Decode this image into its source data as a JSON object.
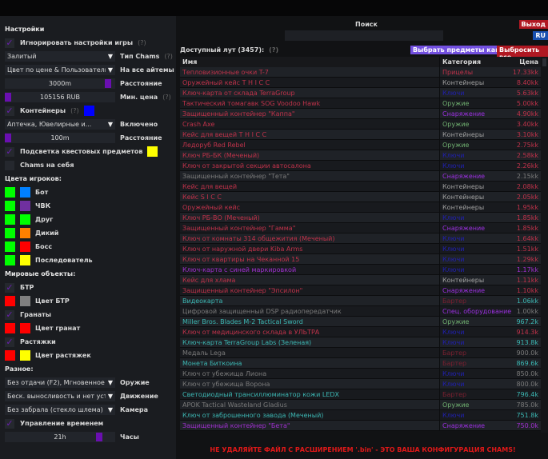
{
  "settings": {
    "title": "Настройки",
    "ignore_game": {
      "label": "Игнорировать настройки игры",
      "help": "(?)",
      "checked": true
    },
    "chams_type": {
      "value": "Залитый",
      "label": "Тип Chams",
      "help": "(?)"
    },
    "color_mode": {
      "value": "Цвет по цене & Пользователь",
      "label": "На все айтемы"
    },
    "distance": {
      "value": "3000m",
      "label": "Расстояние",
      "fraction": 0.96
    },
    "min_price": {
      "value": "105156 RUB",
      "label": "Мин. цена",
      "help": "(?)",
      "fraction": 0.0
    },
    "containers": {
      "label": "Контейнеры",
      "help": "(?)",
      "checked": true,
      "color": "#0000ff"
    },
    "container_types": {
      "value": "Аптечка, Ювелирные и...",
      "label": "Включено"
    },
    "container_distance": {
      "value": "100m",
      "label": "Расстояние",
      "fraction": 0.0
    },
    "quest_items": {
      "label": "Подсветка квестовых предметов",
      "checked": true,
      "color": "#ffff00"
    },
    "self_chams": {
      "label": "Chams на себя",
      "checked": false
    }
  },
  "players": {
    "title": "Цвета игроков:",
    "items": [
      {
        "label": "Бот",
        "c1": "#00ff00",
        "c2": "#0080ff"
      },
      {
        "label": "ЧВК",
        "c1": "#00ff00",
        "c2": "#7030a0"
      },
      {
        "label": "Друг",
        "c1": "#00ff00",
        "c2": "#00ff00"
      },
      {
        "label": "Дикий",
        "c1": "#00ff00",
        "c2": "#ff8000"
      },
      {
        "label": "Босс",
        "c1": "#00ff00",
        "c2": "#ff0000"
      },
      {
        "label": "Последователь",
        "c1": "#00ff00",
        "c2": "#ffff00"
      }
    ]
  },
  "world": {
    "title": "Мировые объекты:",
    "btr": {
      "label": "БТР",
      "checked": true,
      "color_label": "Цвет БТР",
      "c1": "#ff0000",
      "c2": "#808080"
    },
    "grenades": {
      "label": "Гранаты",
      "checked": true,
      "color_label": "Цвет гранат",
      "c1": "#ff0000",
      "c2": "#ff0000"
    },
    "tripwires": {
      "label": "Растяжки",
      "checked": true,
      "color_label": "Цвет растяжек",
      "c1": "#ff0000",
      "c2": "#ffff00"
    }
  },
  "misc": {
    "title": "Разное:",
    "weapon": {
      "value": "Без отдачи (F2), Мгновенное п",
      "label": "Оружие"
    },
    "movement": {
      "value": "Беск. выносливость и нет уста",
      "label": "Движение"
    },
    "camera": {
      "value": "Без забрала (стекло шлема)",
      "label": "Камера"
    },
    "time_control": {
      "label": "Управление временем",
      "checked": true
    },
    "hours": {
      "value": "21h",
      "label": "Часы",
      "fraction": 0.875
    }
  },
  "header": {
    "search_label": "Поиск",
    "search_value": "",
    "exit": "Выход",
    "lang": "RU"
  },
  "loot": {
    "title": "Доступный лут (3457):",
    "help": "(?)",
    "kappa_button": "Выбрать предметы каппа",
    "drop_button": "Выбросить все",
    "columns": [
      "Имя",
      "Категория",
      "Цена"
    ],
    "colors": {
      "red": "#c0324a",
      "grey": "#7a7a7a",
      "purple": "#a030d0",
      "teal": "#3cb8b4",
      "blue": "#2020b0",
      "green": "#70b070",
      "darkred": "#7a2030",
      "cgrey": "#a0a0a0",
      "cpurple": "#9b30e0"
    },
    "rows": [
      [
        "Тепловизионные очки T-7",
        "Прицелы",
        "17.33kk",
        "red",
        "red"
      ],
      [
        "Оружейный кейс T H I C C",
        "Контейнеры",
        "8.40kk",
        "red",
        "cgrey"
      ],
      [
        "Ключ-карта от склада TerraGroup",
        "Ключи",
        "5.63kk",
        "red",
        "blue"
      ],
      [
        "Тактический томагавк SOG Voodoo Hawk",
        "Оружие",
        "5.00kk",
        "red",
        "green"
      ],
      [
        "Защищенный контейнер \"Каппа\"",
        "Снаряжение",
        "4.90kk",
        "red",
        "cpurple"
      ],
      [
        "Crash Axe",
        "Оружие",
        "3.40kk",
        "red",
        "green"
      ],
      [
        "Кейс для вещей T H I C C",
        "Контейнеры",
        "3.10kk",
        "red",
        "cgrey"
      ],
      [
        "Ледоруб Red Rebel",
        "Оружие",
        "2.75kk",
        "red",
        "green"
      ],
      [
        "Ключ РБ-БК (Меченый)",
        "Ключи",
        "2.58kk",
        "red",
        "blue"
      ],
      [
        "Ключ от закрытой секции автосалона",
        "Ключи",
        "2.26kk",
        "red",
        "blue"
      ],
      [
        "Защищенный контейнер \"Тета\"",
        "Снаряжение",
        "2.15kk",
        "grey",
        "cpurple"
      ],
      [
        "Кейс для вещей",
        "Контейнеры",
        "2.08kk",
        "red",
        "cgrey"
      ],
      [
        "Кейс S I C C",
        "Контейнеры",
        "2.05kk",
        "red",
        "cgrey"
      ],
      [
        "Оружейный кейс",
        "Контейнеры",
        "1.95kk",
        "red",
        "cgrey"
      ],
      [
        "Ключ РБ-ВО (Меченый)",
        "Ключи",
        "1.85kk",
        "red",
        "blue"
      ],
      [
        "Защищенный контейнер \"Гамма\"",
        "Снаряжение",
        "1.85kk",
        "red",
        "cpurple"
      ],
      [
        "Ключ от комнаты 314 общежития (Меченый)",
        "Ключи",
        "1.64kk",
        "red",
        "blue"
      ],
      [
        "Ключ от наружной двери Kiba Arms",
        "Ключи",
        "1.51kk",
        "red",
        "blue"
      ],
      [
        "Ключ от квартиры на Чеканной 15",
        "Ключи",
        "1.29kk",
        "red",
        "blue"
      ],
      [
        "Ключ-карта с синей маркировкой",
        "Ключи",
        "1.17kk",
        "purple",
        "blue"
      ],
      [
        "Кейс для хлама",
        "Контейнеры",
        "1.11kk",
        "red",
        "cgrey"
      ],
      [
        "Защищенный контейнер \"Эпсилон\"",
        "Снаряжение",
        "1.10kk",
        "red",
        "cpurple"
      ],
      [
        "Видеокарта",
        "Бартер",
        "1.06kk",
        "teal",
        "darkred"
      ],
      [
        "Цифровой защищенный DSP радиопередатчик",
        "Спец. оборудование",
        "1.00kk",
        "grey",
        "cpurple"
      ],
      [
        "Miller Bros. Blades M-2 Tactical Sword",
        "Оружие",
        "967.2k",
        "teal",
        "green"
      ],
      [
        "Ключ от медицинского склада в УЛЬТРА",
        "Ключи",
        "914.3k",
        "red",
        "blue"
      ],
      [
        "Ключ-карта TerraGroup Labs (Зеленая)",
        "Ключи",
        "913.8k",
        "teal",
        "blue"
      ],
      [
        "Медаль Lega",
        "Бартер",
        "900.0k",
        "grey",
        "darkred"
      ],
      [
        "Монета Биткоина",
        "Бартер",
        "869.6k",
        "teal",
        "darkred"
      ],
      [
        "Ключ от убежища Лиона",
        "Ключи",
        "850.0k",
        "grey",
        "blue"
      ],
      [
        "Ключ от убежища Ворона",
        "Ключи",
        "800.0k",
        "grey",
        "blue"
      ],
      [
        "Светодиодный трансиллюминатор кожи LEDX",
        "Бартер",
        "796.4k",
        "teal",
        "darkred"
      ],
      [
        "APOK Tactical Wasteland Gladius",
        "Оружие",
        "785.0k",
        "grey",
        "green"
      ],
      [
        "Ключ от заброшенного завода (Меченый)",
        "Ключи",
        "751.8k",
        "teal",
        "blue"
      ],
      [
        "Защищенный контейнер \"Бета\"",
        "Снаряжение",
        "750.0k",
        "purple",
        "cpurple"
      ]
    ]
  },
  "warning": "НЕ УДАЛЯЙТЕ ФАЙЛ С РАСШИРЕНИЕМ '.bin' - ЭТО ВАША КОНФИГУРАЦИЯ CHAMS!"
}
